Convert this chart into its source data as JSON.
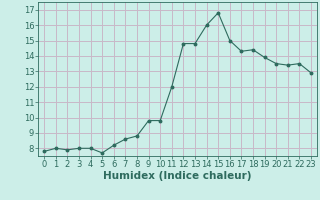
{
  "x": [
    0,
    1,
    2,
    3,
    4,
    5,
    6,
    7,
    8,
    9,
    10,
    11,
    12,
    13,
    14,
    15,
    16,
    17,
    18,
    19,
    20,
    21,
    22,
    23
  ],
  "y": [
    7.8,
    8.0,
    7.9,
    8.0,
    8.0,
    7.7,
    8.2,
    8.6,
    8.8,
    9.8,
    9.8,
    12.0,
    14.8,
    14.8,
    16.0,
    16.8,
    15.0,
    14.3,
    14.4,
    13.9,
    13.5,
    13.4,
    13.5,
    12.9
  ],
  "xlim": [
    -0.5,
    23.5
  ],
  "ylim": [
    7.5,
    17.5
  ],
  "yticks": [
    8,
    9,
    10,
    11,
    12,
    13,
    14,
    15,
    16,
    17
  ],
  "xticks": [
    0,
    1,
    2,
    3,
    4,
    5,
    6,
    7,
    8,
    9,
    10,
    11,
    12,
    13,
    14,
    15,
    16,
    17,
    18,
    19,
    20,
    21,
    22,
    23
  ],
  "xlabel": "Humidex (Indice chaleur)",
  "line_color": "#2e6b5e",
  "marker": "o",
  "marker_size": 1.8,
  "bg_color": "#cceee8",
  "grid_color": "#c8b8c8",
  "tick_color": "#2e6b5e",
  "label_color": "#2e6b5e",
  "font_size_axis": 6,
  "font_size_xlabel": 7.5
}
